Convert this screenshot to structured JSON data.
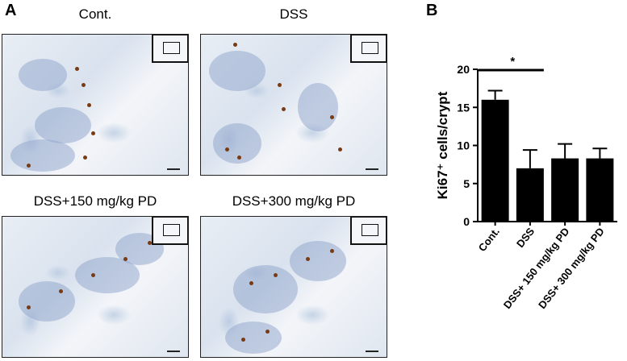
{
  "panel_a": {
    "letter": "A",
    "images": [
      {
        "title": "Cont."
      },
      {
        "title": "DSS"
      },
      {
        "title": "DSS+150 mg/kg PD"
      },
      {
        "title": "DSS+300 mg/kg PD"
      }
    ]
  },
  "panel_b": {
    "letter": "B"
  },
  "chart_data": {
    "type": "bar",
    "categories": [
      "Cont.",
      "DSS",
      "DSS+ 150 mg/kg PD",
      "DSS+ 300 mg/kg PD"
    ],
    "values": [
      16.0,
      7.0,
      8.3,
      8.3
    ],
    "errors": [
      1.2,
      2.4,
      1.9,
      1.3
    ],
    "ylabel": "Ki67⁺ cells/crypt",
    "xlabel": "",
    "ylim": [
      0,
      20
    ],
    "yticks": [
      0,
      5,
      10,
      15,
      20
    ],
    "significance": {
      "from": "Cont.",
      "to": "DSS",
      "label": "*"
    },
    "bar_color": "#000000",
    "grid": false
  }
}
